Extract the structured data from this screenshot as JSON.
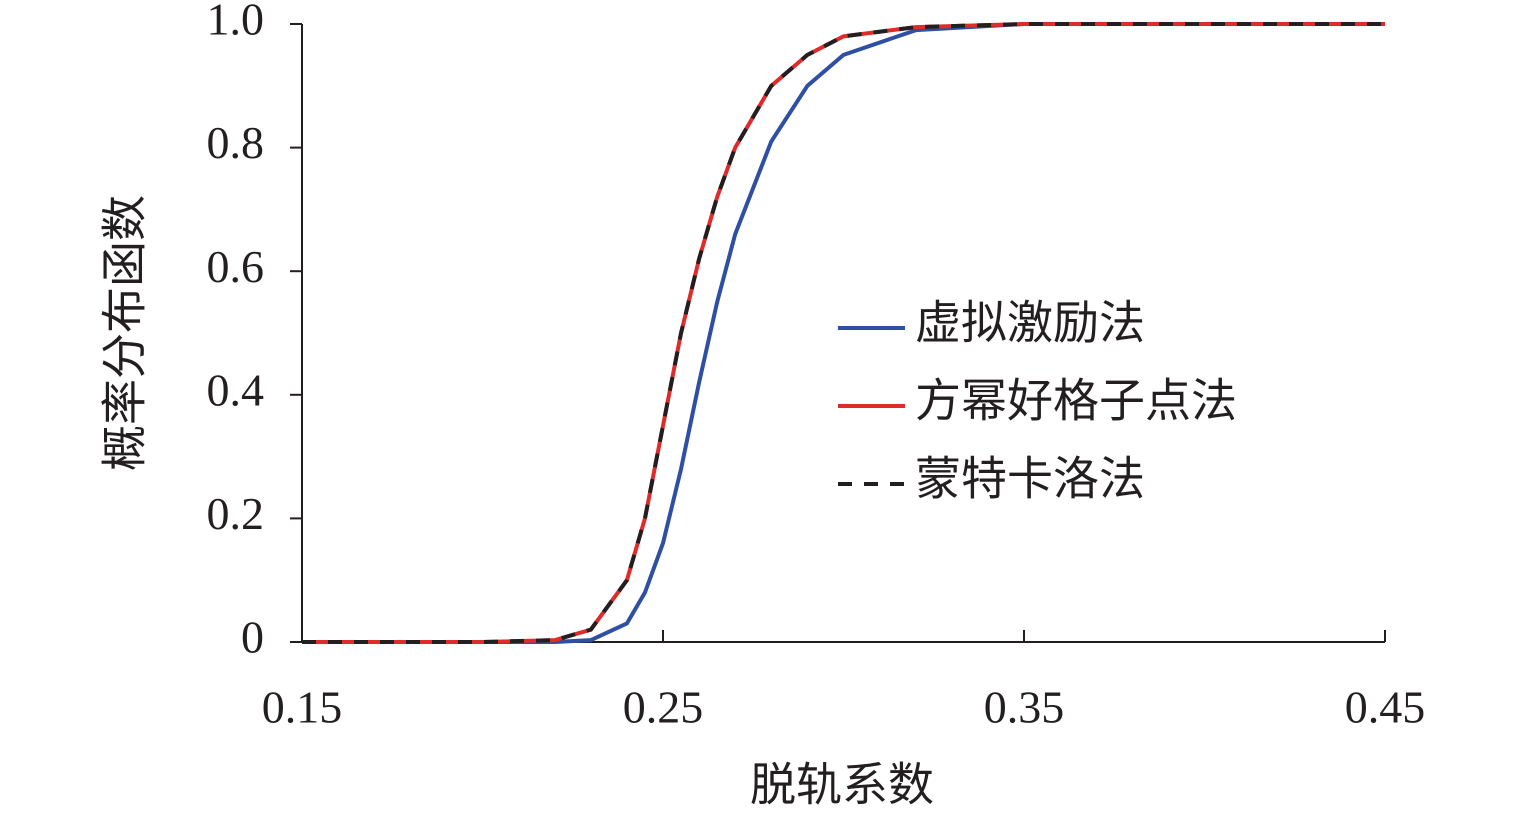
{
  "chart_data": {
    "type": "line",
    "x_label": "脱轨系数",
    "y_label": "概率分布函数",
    "x": [
      0.15,
      0.2,
      0.22,
      0.23,
      0.24,
      0.245,
      0.25,
      0.255,
      0.26,
      0.265,
      0.27,
      0.28,
      0.29,
      0.3,
      0.32,
      0.35,
      0.4,
      0.45
    ],
    "series": [
      {
        "name": "虚拟激励法",
        "color": "#2e4fa3",
        "dash": false,
        "values": [
          0,
          0,
          0,
          0.003,
          0.03,
          0.08,
          0.16,
          0.28,
          0.42,
          0.55,
          0.66,
          0.81,
          0.9,
          0.95,
          0.99,
          1,
          1,
          1
        ]
      },
      {
        "name": "方幂好格子点法",
        "color": "#e02b2b",
        "dash": false,
        "values": [
          0,
          0,
          0.003,
          0.02,
          0.1,
          0.2,
          0.35,
          0.5,
          0.62,
          0.72,
          0.8,
          0.9,
          0.95,
          0.98,
          0.995,
          1,
          1,
          1
        ]
      },
      {
        "name": "蒙特卡洛法",
        "color": "#231f20",
        "dash": true,
        "values": [
          0,
          0,
          0.003,
          0.02,
          0.1,
          0.2,
          0.35,
          0.5,
          0.62,
          0.72,
          0.8,
          0.9,
          0.95,
          0.98,
          0.995,
          1,
          1,
          1
        ]
      }
    ],
    "xlim": [
      0.15,
      0.45
    ],
    "xticks": [
      0.15,
      0.25,
      0.35,
      0.45
    ],
    "ylim": [
      0,
      1
    ],
    "yticks": [
      0,
      0.2,
      0.4,
      0.6,
      0.8,
      {
        "value": 1,
        "label": "1.0"
      }
    ],
    "legend": "right"
  }
}
